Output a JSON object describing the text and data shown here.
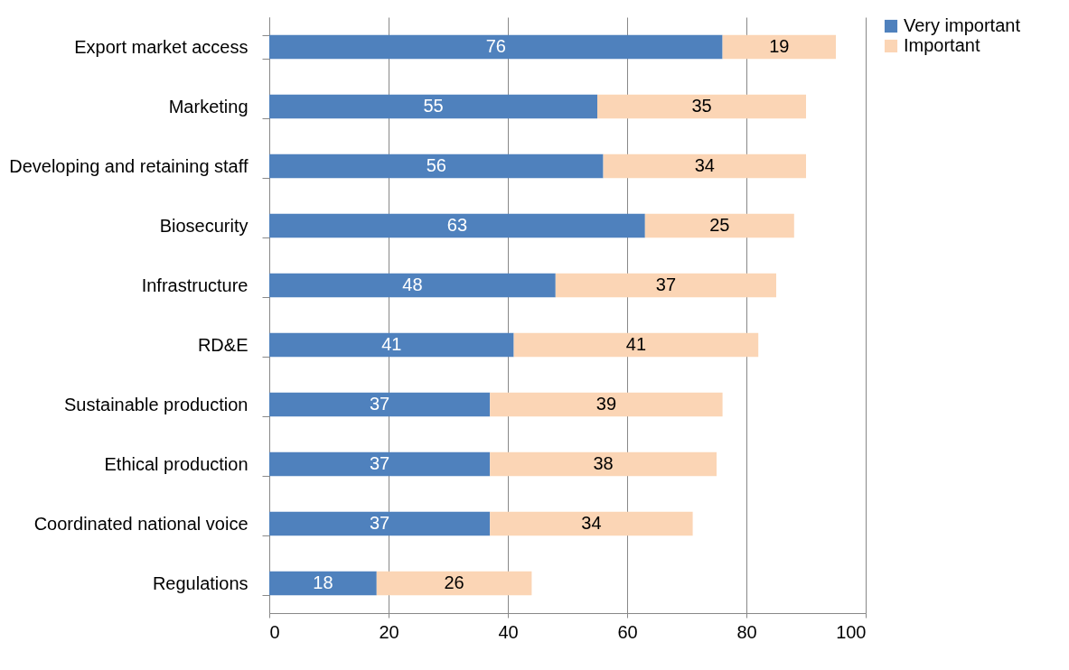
{
  "chart_data": {
    "type": "bar",
    "orientation": "horizontal",
    "stacked": true,
    "categories": [
      "Export market access",
      "Marketing",
      "Developing and retaining staff",
      "Biosecurity",
      "Infrastructure",
      "RD&E",
      "Sustainable production",
      "Ethical production",
      "Coordinated national voice",
      "Regulations"
    ],
    "series": [
      {
        "name": "Very important",
        "color": "#4f81bd",
        "values": [
          76,
          55,
          56,
          63,
          48,
          41,
          37,
          37,
          37,
          18
        ]
      },
      {
        "name": "Important",
        "color": "#fbd5b5",
        "values": [
          19,
          35,
          34,
          25,
          37,
          41,
          39,
          38,
          34,
          26
        ]
      }
    ],
    "xlim": [
      0,
      100
    ],
    "xticks": [
      0,
      20,
      40,
      60,
      80,
      100
    ],
    "grid": "x",
    "legend": "right",
    "data_labels": true
  }
}
